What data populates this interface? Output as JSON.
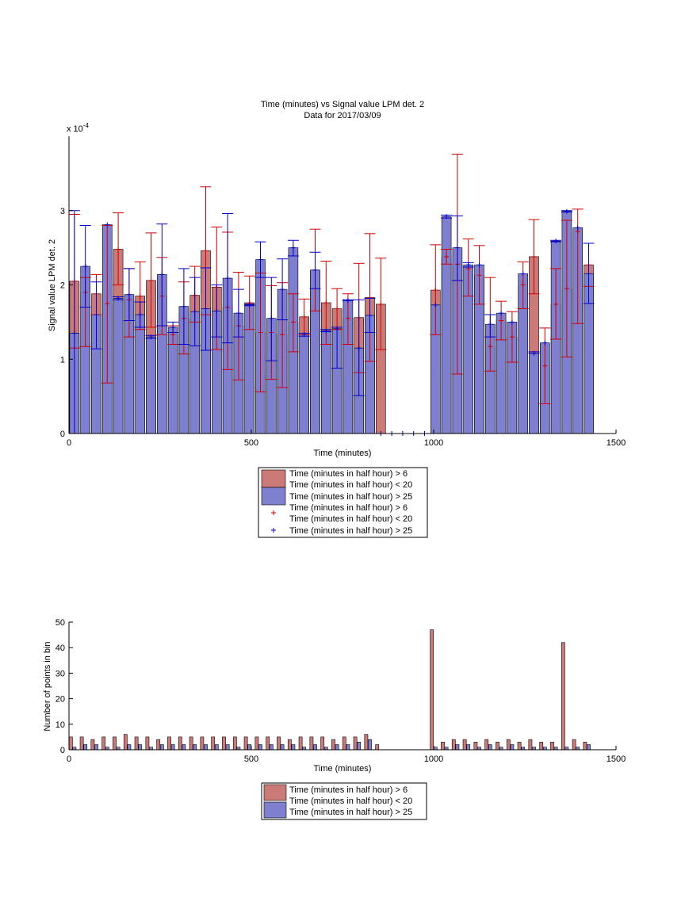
{
  "colors": {
    "red_fill": "#cc7a77",
    "blue_fill": "#7f7fd0",
    "red_err": "#d00000",
    "blue_err": "#0000cc"
  },
  "chart_data": [
    {
      "type": "bar",
      "title_line1": "Time (minutes) vs Signal value LPM det. 2",
      "title_line2": "Data for 2017/03/09",
      "xlabel": "Time (minutes)",
      "ylabel": "Signal value LPM det. 2",
      "exponent_label": "x 10",
      "exponent_power": "-4",
      "xlim": [
        0,
        1500
      ],
      "ylim": [
        0,
        4
      ],
      "xticks": [
        "0",
        "500",
        "1000",
        "1500"
      ],
      "yticks": [
        "0",
        "1",
        "2",
        "3"
      ],
      "legend": {
        "position": "below",
        "entries": [
          "Time (minutes in half hour) > 6",
          "Time (minutes in half hour) < 20",
          "Time (minutes in half hour) > 25",
          "Time (minutes in half hour) > 6",
          "Time (minutes in half hour) < 20",
          "Time (minutes in half hour) > 25"
        ]
      },
      "red_series": [
        {
          "x": 15,
          "y": 2.05,
          "lo": 1.15,
          "hi": 2.95
        },
        {
          "x": 45,
          "y": 1.9,
          "lo": 1.17,
          "hi": 2.1
        },
        {
          "x": 75,
          "y": 1.88,
          "lo": 1.6,
          "hi": 2.14
        },
        {
          "x": 105,
          "y": 1.75,
          "lo": 0.68,
          "hi": 2.8
        },
        {
          "x": 135,
          "y": 2.48,
          "lo": 2.0,
          "hi": 2.97
        },
        {
          "x": 165,
          "y": 1.8,
          "lo": 1.3,
          "hi": 2.22
        },
        {
          "x": 195,
          "y": 1.85,
          "lo": 1.4,
          "hi": 2.31
        },
        {
          "x": 225,
          "y": 2.06,
          "lo": 1.43,
          "hi": 2.7
        },
        {
          "x": 255,
          "y": 1.85,
          "lo": 1.33,
          "hi": 2.37
        },
        {
          "x": 285,
          "y": 1.33,
          "lo": 1.2,
          "hi": 1.45
        },
        {
          "x": 315,
          "y": 1.55,
          "lo": 1.07,
          "hi": 2.04
        },
        {
          "x": 345,
          "y": 1.86,
          "lo": 1.5,
          "hi": 2.25
        },
        {
          "x": 375,
          "y": 2.46,
          "lo": 1.6,
          "hi": 3.32
        },
        {
          "x": 405,
          "y": 1.97,
          "lo": 1.13,
          "hi": 2.78
        },
        {
          "x": 435,
          "y": 1.7,
          "lo": 0.86,
          "hi": 2.71
        },
        {
          "x": 465,
          "y": 1.45,
          "lo": 0.72,
          "hi": 2.17
        },
        {
          "x": 495,
          "y": 1.76,
          "lo": 1.4,
          "hi": 2.12
        },
        {
          "x": 525,
          "y": 1.36,
          "lo": 0.56,
          "hi": 2.16
        },
        {
          "x": 555,
          "y": 1.36,
          "lo": 0.73,
          "hi": 1.99
        },
        {
          "x": 585,
          "y": 1.33,
          "lo": 0.62,
          "hi": 2.03
        },
        {
          "x": 615,
          "y": 1.5,
          "lo": 1.1,
          "hi": 1.88
        },
        {
          "x": 645,
          "y": 1.57,
          "lo": 1.33,
          "hi": 1.81
        },
        {
          "x": 675,
          "y": 2.2,
          "lo": 1.65,
          "hi": 2.75
        },
        {
          "x": 705,
          "y": 1.76,
          "lo": 1.2,
          "hi": 2.32
        },
        {
          "x": 735,
          "y": 1.68,
          "lo": 1.4,
          "hi": 1.95
        },
        {
          "x": 765,
          "y": 1.55,
          "lo": 1.2,
          "hi": 1.88
        },
        {
          "x": 795,
          "y": 1.56,
          "lo": 0.82,
          "hi": 2.29
        },
        {
          "x": 825,
          "y": 1.83,
          "lo": 0.97,
          "hi": 2.69
        },
        {
          "x": 855,
          "y": 1.74,
          "lo": 1.13,
          "hi": 2.36
        },
        {
          "x": 1005,
          "y": 1.93,
          "lo": 1.33,
          "hi": 2.54
        },
        {
          "x": 1035,
          "y": 2.38,
          "lo": 2.28,
          "hi": 2.48
        },
        {
          "x": 1065,
          "y": 2.28,
          "lo": 0.8,
          "hi": 3.76
        },
        {
          "x": 1095,
          "y": 2.22,
          "lo": 1.85,
          "hi": 2.62
        },
        {
          "x": 1125,
          "y": 2.13,
          "lo": 1.74,
          "hi": 2.53
        },
        {
          "x": 1155,
          "y": 1.17,
          "lo": 0.84,
          "hi": 2.1
        },
        {
          "x": 1185,
          "y": 1.52,
          "lo": 1.26,
          "hi": 1.78
        },
        {
          "x": 1215,
          "y": 1.3,
          "lo": 0.96,
          "hi": 1.64
        },
        {
          "x": 1245,
          "y": 2.0,
          "lo": 1.68,
          "hi": 2.31
        },
        {
          "x": 1275,
          "y": 2.38,
          "lo": 1.88,
          "hi": 2.88
        },
        {
          "x": 1305,
          "y": 0.91,
          "lo": 0.4,
          "hi": 1.42
        },
        {
          "x": 1335,
          "y": 1.74,
          "lo": 1.27,
          "hi": 2.22
        },
        {
          "x": 1365,
          "y": 1.95,
          "lo": 1.03,
          "hi": 2.87
        },
        {
          "x": 1395,
          "y": 2.72,
          "lo": 1.48,
          "hi": 3.02
        },
        {
          "x": 1425,
          "y": 2.27,
          "lo": 1.98,
          "hi": 2.56
        }
      ],
      "blue_series": [
        {
          "x": 15,
          "y": 1.35,
          "lo": 0.0,
          "hi": 3.0
        },
        {
          "x": 45,
          "y": 2.25,
          "lo": 1.7,
          "hi": 2.8
        },
        {
          "x": 75,
          "y": 1.6,
          "lo": 1.14,
          "hi": 2.04
        },
        {
          "x": 105,
          "y": 2.81,
          "lo": 2.81,
          "hi": 2.81
        },
        {
          "x": 135,
          "y": 1.82,
          "lo": 1.8,
          "hi": 1.84
        },
        {
          "x": 165,
          "y": 1.87,
          "lo": 1.52,
          "hi": 2.22
        },
        {
          "x": 195,
          "y": 1.6,
          "lo": 1.43,
          "hi": 1.77
        },
        {
          "x": 225,
          "y": 1.3,
          "lo": 1.28,
          "hi": 1.32
        },
        {
          "x": 255,
          "y": 2.14,
          "lo": 1.45,
          "hi": 2.82
        },
        {
          "x": 285,
          "y": 1.43,
          "lo": 1.36,
          "hi": 1.5
        },
        {
          "x": 315,
          "y": 1.71,
          "lo": 1.2,
          "hi": 2.22
        },
        {
          "x": 345,
          "y": 1.64,
          "lo": 1.18,
          "hi": 2.1
        },
        {
          "x": 375,
          "y": 1.68,
          "lo": 1.12,
          "hi": 2.23
        },
        {
          "x": 405,
          "y": 1.65,
          "lo": 1.3,
          "hi": 2.0
        },
        {
          "x": 435,
          "y": 2.09,
          "lo": 1.22,
          "hi": 2.96
        },
        {
          "x": 465,
          "y": 1.62,
          "lo": 1.3,
          "hi": 1.94
        },
        {
          "x": 495,
          "y": 1.73,
          "lo": 1.72,
          "hi": 1.74
        },
        {
          "x": 525,
          "y": 2.34,
          "lo": 2.1,
          "hi": 2.58
        },
        {
          "x": 555,
          "y": 1.55,
          "lo": 0.98,
          "hi": 2.1
        },
        {
          "x": 585,
          "y": 1.94,
          "lo": 1.53,
          "hi": 2.35
        },
        {
          "x": 615,
          "y": 2.5,
          "lo": 2.39,
          "hi": 2.6
        },
        {
          "x": 645,
          "y": 1.33,
          "lo": 1.31,
          "hi": 1.35
        },
        {
          "x": 675,
          "y": 2.2,
          "lo": 1.95,
          "hi": 2.44
        },
        {
          "x": 705,
          "y": 1.38,
          "lo": 1.37,
          "hi": 1.4
        },
        {
          "x": 735,
          "y": 1.41,
          "lo": 0.88,
          "hi": 1.43
        },
        {
          "x": 765,
          "y": 1.79,
          "lo": 1.79,
          "hi": 1.8
        },
        {
          "x": 795,
          "y": 1.15,
          "lo": 0.51,
          "hi": 1.8
        },
        {
          "x": 825,
          "y": 1.59,
          "lo": 1.36,
          "hi": 1.82
        },
        {
          "x": 855,
          "y": 0.0,
          "lo": 0.0,
          "hi": 0.0
        },
        {
          "x": 885,
          "y": 0.0,
          "lo": 0.0,
          "hi": 0.0
        },
        {
          "x": 915,
          "y": 0.0,
          "lo": 0.0,
          "hi": 0.0
        },
        {
          "x": 945,
          "y": 0.0,
          "lo": 0.0,
          "hi": 0.0
        },
        {
          "x": 975,
          "y": 0.0,
          "lo": 0.0,
          "hi": 0.0
        },
        {
          "x": 1005,
          "y": 1.73,
          "lo": 1.73,
          "hi": 1.73
        },
        {
          "x": 1035,
          "y": 2.92,
          "lo": 2.9,
          "hi": 2.94
        },
        {
          "x": 1065,
          "y": 2.5,
          "lo": 2.06,
          "hi": 2.93
        },
        {
          "x": 1095,
          "y": 2.27,
          "lo": 2.24,
          "hi": 2.3
        },
        {
          "x": 1125,
          "y": 2.27,
          "lo": 2.27,
          "hi": 2.27
        },
        {
          "x": 1155,
          "y": 1.47,
          "lo": 1.3,
          "hi": 1.6
        },
        {
          "x": 1185,
          "y": 1.62,
          "lo": 1.62,
          "hi": 1.62
        },
        {
          "x": 1215,
          "y": 1.5,
          "lo": 1.5,
          "hi": 1.5
        },
        {
          "x": 1245,
          "y": 2.15,
          "lo": 2.15,
          "hi": 2.15
        },
        {
          "x": 1275,
          "y": 1.08,
          "lo": 1.08,
          "hi": 1.1
        },
        {
          "x": 1305,
          "y": 1.22,
          "lo": 1.22,
          "hi": 1.22
        },
        {
          "x": 1335,
          "y": 2.59,
          "lo": 2.58,
          "hi": 2.6
        },
        {
          "x": 1365,
          "y": 2.99,
          "lo": 2.98,
          "hi": 3.0
        },
        {
          "x": 1395,
          "y": 2.77,
          "lo": 2.77,
          "hi": 2.77
        },
        {
          "x": 1425,
          "y": 2.15,
          "lo": 1.75,
          "hi": 2.56
        }
      ]
    },
    {
      "type": "bar",
      "xlabel": "Time (minutes)",
      "ylabel": "Number of points in bin",
      "xlim": [
        0,
        1500
      ],
      "ylim": [
        0,
        50
      ],
      "xticks": [
        "0",
        "500",
        "1000",
        "1500"
      ],
      "yticks": [
        "0",
        "10",
        "20",
        "30",
        "40",
        "50"
      ],
      "legend": {
        "position": "below",
        "entries": [
          "Time (minutes in half hour) > 6",
          "Time (minutes in half hour) < 20",
          "Time (minutes in half hour) > 25"
        ]
      },
      "red_series": [
        {
          "x": 5,
          "y": 5
        },
        {
          "x": 35,
          "y": 5
        },
        {
          "x": 65,
          "y": 4
        },
        {
          "x": 95,
          "y": 5
        },
        {
          "x": 125,
          "y": 5
        },
        {
          "x": 155,
          "y": 6
        },
        {
          "x": 185,
          "y": 5
        },
        {
          "x": 215,
          "y": 5
        },
        {
          "x": 245,
          "y": 4
        },
        {
          "x": 275,
          "y": 5
        },
        {
          "x": 305,
          "y": 5
        },
        {
          "x": 335,
          "y": 5
        },
        {
          "x": 365,
          "y": 5
        },
        {
          "x": 395,
          "y": 5
        },
        {
          "x": 425,
          "y": 5
        },
        {
          "x": 455,
          "y": 5
        },
        {
          "x": 485,
          "y": 5
        },
        {
          "x": 515,
          "y": 5
        },
        {
          "x": 545,
          "y": 5
        },
        {
          "x": 575,
          "y": 5
        },
        {
          "x": 605,
          "y": 4
        },
        {
          "x": 635,
          "y": 5
        },
        {
          "x": 665,
          "y": 5
        },
        {
          "x": 695,
          "y": 5
        },
        {
          "x": 725,
          "y": 4
        },
        {
          "x": 755,
          "y": 5
        },
        {
          "x": 785,
          "y": 5
        },
        {
          "x": 815,
          "y": 6
        },
        {
          "x": 845,
          "y": 2
        },
        {
          "x": 995,
          "y": 47
        },
        {
          "x": 1025,
          "y": 3
        },
        {
          "x": 1055,
          "y": 4
        },
        {
          "x": 1085,
          "y": 4
        },
        {
          "x": 1115,
          "y": 3
        },
        {
          "x": 1145,
          "y": 4
        },
        {
          "x": 1175,
          "y": 3
        },
        {
          "x": 1205,
          "y": 4
        },
        {
          "x": 1235,
          "y": 3
        },
        {
          "x": 1265,
          "y": 4
        },
        {
          "x": 1295,
          "y": 3
        },
        {
          "x": 1325,
          "y": 3
        },
        {
          "x": 1355,
          "y": 42
        },
        {
          "x": 1385,
          "y": 4
        },
        {
          "x": 1415,
          "y": 3
        }
      ],
      "blue_series": [
        {
          "x": 15,
          "y": 1
        },
        {
          "x": 45,
          "y": 2
        },
        {
          "x": 75,
          "y": 2
        },
        {
          "x": 105,
          "y": 1
        },
        {
          "x": 135,
          "y": 1
        },
        {
          "x": 165,
          "y": 2
        },
        {
          "x": 195,
          "y": 2
        },
        {
          "x": 225,
          "y": 1
        },
        {
          "x": 255,
          "y": 2
        },
        {
          "x": 285,
          "y": 2
        },
        {
          "x": 315,
          "y": 2
        },
        {
          "x": 345,
          "y": 2
        },
        {
          "x": 375,
          "y": 2
        },
        {
          "x": 405,
          "y": 2
        },
        {
          "x": 435,
          "y": 2
        },
        {
          "x": 465,
          "y": 1
        },
        {
          "x": 495,
          "y": 2
        },
        {
          "x": 525,
          "y": 2
        },
        {
          "x": 555,
          "y": 2
        },
        {
          "x": 585,
          "y": 2
        },
        {
          "x": 615,
          "y": 2
        },
        {
          "x": 645,
          "y": 1
        },
        {
          "x": 675,
          "y": 2
        },
        {
          "x": 705,
          "y": 1
        },
        {
          "x": 735,
          "y": 2
        },
        {
          "x": 765,
          "y": 2
        },
        {
          "x": 795,
          "y": 3
        },
        {
          "x": 825,
          "y": 4
        },
        {
          "x": 1005,
          "y": 1
        },
        {
          "x": 1035,
          "y": 1
        },
        {
          "x": 1065,
          "y": 2
        },
        {
          "x": 1095,
          "y": 2
        },
        {
          "x": 1125,
          "y": 1
        },
        {
          "x": 1155,
          "y": 2
        },
        {
          "x": 1185,
          "y": 1
        },
        {
          "x": 1215,
          "y": 2
        },
        {
          "x": 1245,
          "y": 1
        },
        {
          "x": 1275,
          "y": 1
        },
        {
          "x": 1305,
          "y": 1
        },
        {
          "x": 1335,
          "y": 1
        },
        {
          "x": 1365,
          "y": 1
        },
        {
          "x": 1395,
          "y": 1
        },
        {
          "x": 1425,
          "y": 2
        }
      ]
    }
  ]
}
